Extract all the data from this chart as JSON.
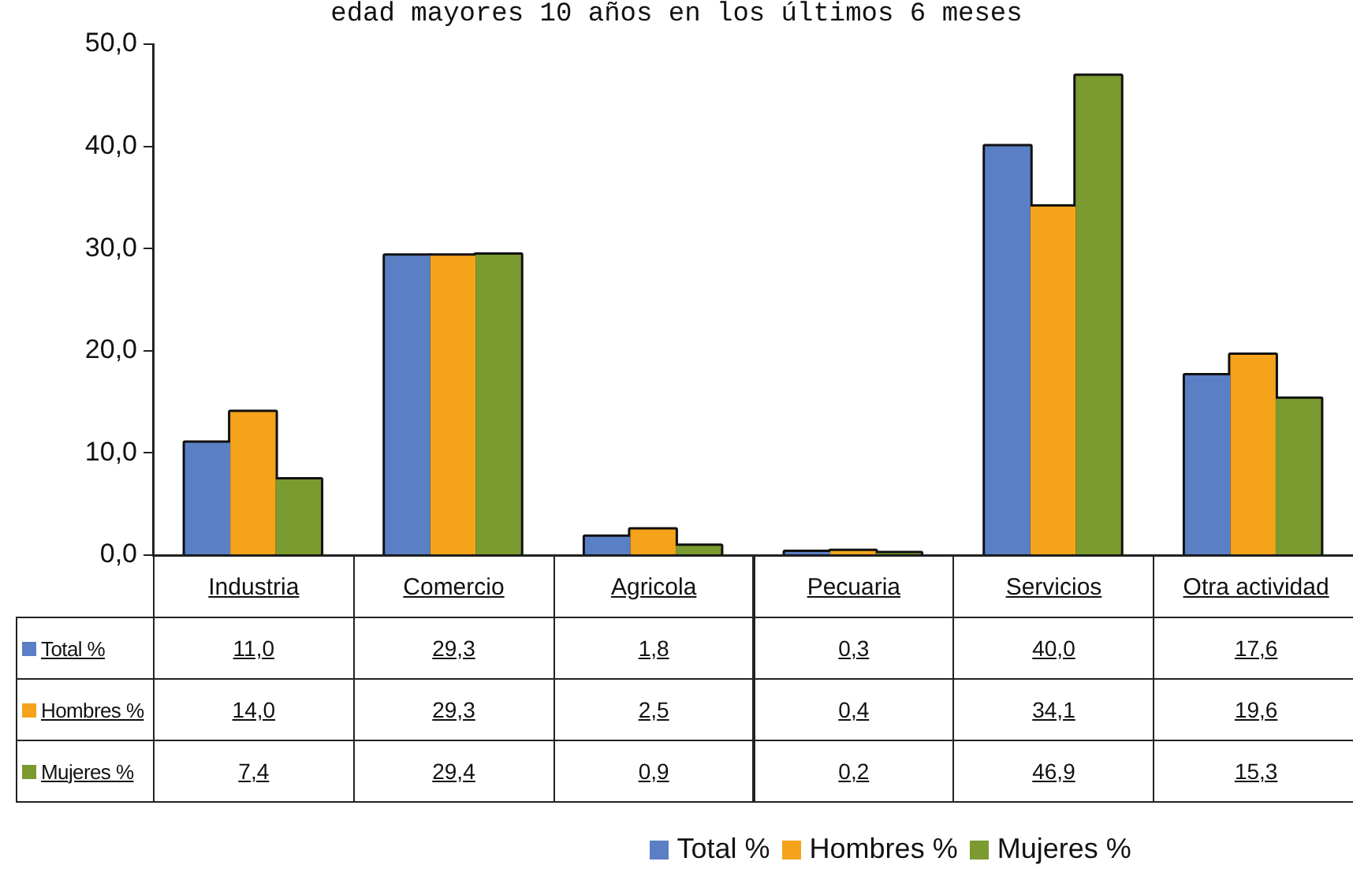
{
  "chart_data": {
    "type": "bar",
    "title": "edad mayores 10 años en los últimos 6 meses",
    "categories": [
      "Industria",
      "Comercio",
      "Agricola",
      "Pecuaria",
      "Servicios",
      "Otra actividad"
    ],
    "series": [
      {
        "name": "Total %",
        "color": "#5b7fc4",
        "values": [
          11.0,
          29.3,
          1.8,
          0.3,
          40.0,
          17.6
        ],
        "value_labels": [
          "11,0",
          "29,3",
          "1,8",
          "0,3",
          "40,0",
          "17,6"
        ]
      },
      {
        "name": "Hombres %",
        "color": "#f5a31a",
        "values": [
          14.0,
          29.3,
          2.5,
          0.4,
          34.1,
          19.6
        ],
        "value_labels": [
          "14,0",
          "29,3",
          "2,5",
          "0,4",
          "34,1",
          "19,6"
        ]
      },
      {
        "name": "Mujeres %",
        "color": "#7b9a2f",
        "values": [
          7.4,
          29.4,
          0.9,
          0.2,
          46.9,
          15.3
        ],
        "value_labels": [
          "7,4",
          "29,4",
          "0,9",
          "0,2",
          "46,9",
          "15,3"
        ]
      }
    ],
    "ylim": [
      0,
      50
    ],
    "yticks": [
      {
        "value": 0,
        "label": "0,0"
      },
      {
        "value": 10,
        "label": "10,0"
      },
      {
        "value": 20,
        "label": "20,0"
      },
      {
        "value": 30,
        "label": "30,0"
      },
      {
        "value": 40,
        "label": "40,0"
      },
      {
        "value": 50,
        "label": "50,0"
      }
    ],
    "legend": "bottom"
  }
}
